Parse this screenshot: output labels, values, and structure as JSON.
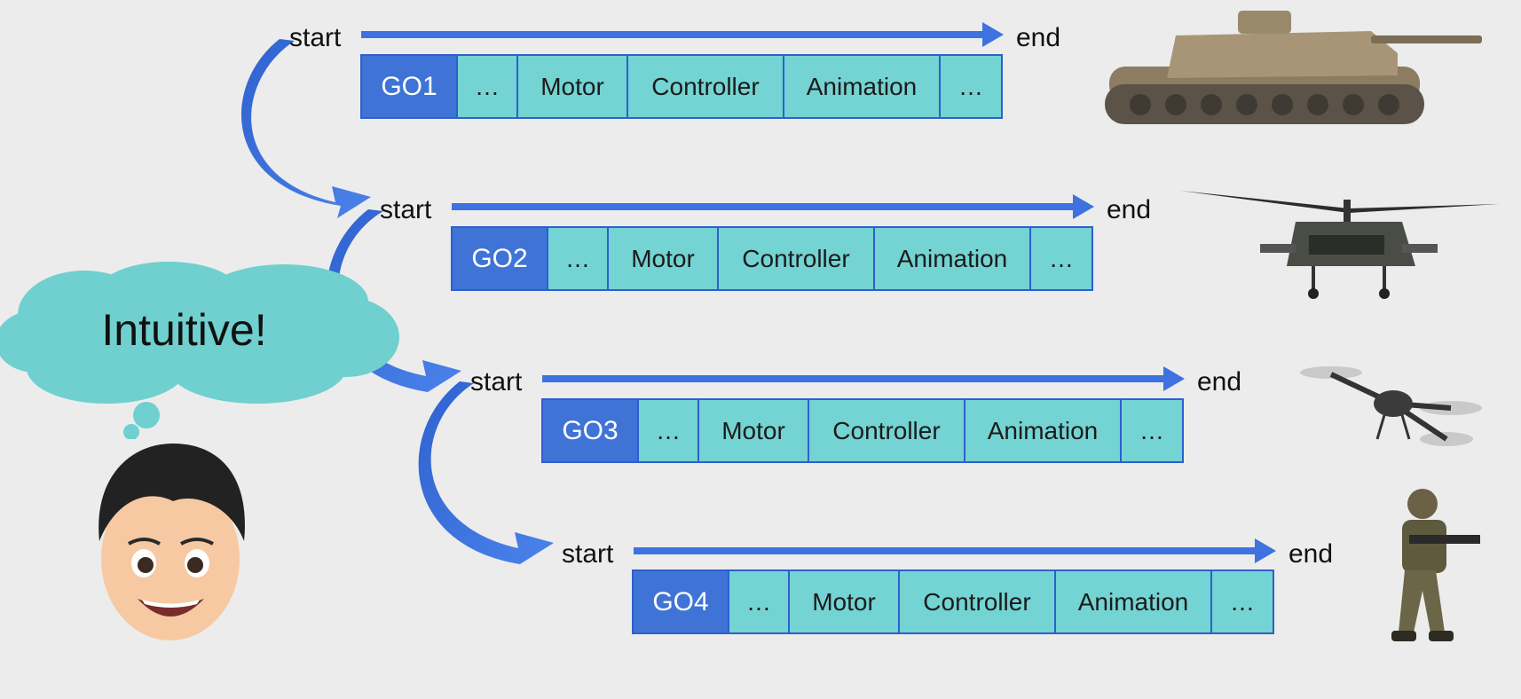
{
  "rows": [
    {
      "start": "start",
      "end": "end",
      "cells": [
        "GO1",
        "…",
        "Motor",
        "Controller",
        "Animation",
        "…"
      ],
      "vehicle": "tank"
    },
    {
      "start": "start",
      "end": "end",
      "cells": [
        "GO2",
        "…",
        "Motor",
        "Controller",
        "Animation",
        "…"
      ],
      "vehicle": "helicopter"
    },
    {
      "start": "start",
      "end": "end",
      "cells": [
        "GO3",
        "…",
        "Motor",
        "Controller",
        "Animation",
        "…"
      ],
      "vehicle": "drone"
    },
    {
      "start": "start",
      "end": "end",
      "cells": [
        "GO4",
        "…",
        "Motor",
        "Controller",
        "Animation",
        "…"
      ],
      "vehicle": "soldier"
    }
  ],
  "thought": "Intuitive!",
  "colors": {
    "arrow": "#3d72e0",
    "cell": "#74d3d3",
    "go_cell": "#3f74d6",
    "cloud": "#6fd0cf"
  }
}
